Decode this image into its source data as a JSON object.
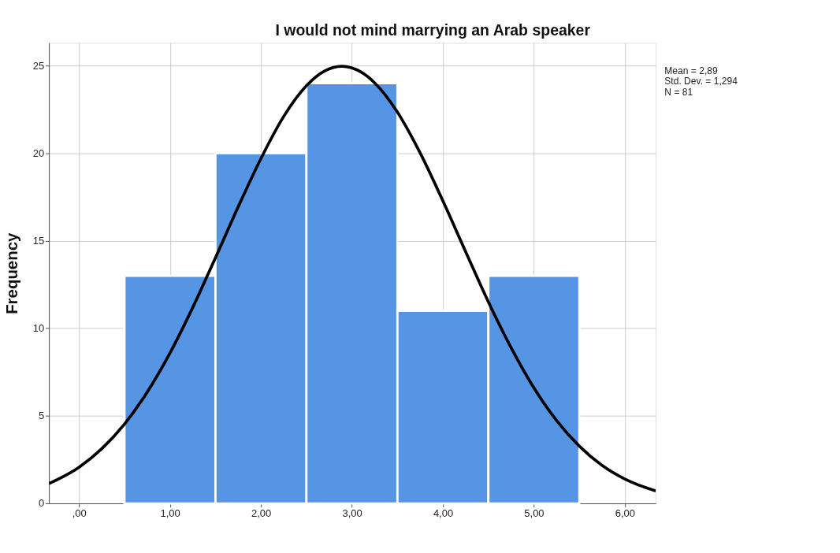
{
  "chart_data": {
    "type": "histogram",
    "title": "I would not mind marrying an Arab speaker",
    "ylabel": "Frequency",
    "bins": [
      0.5,
      1.5,
      2.5,
      3.5,
      4.5,
      5.5
    ],
    "values": [
      13,
      20,
      24,
      11,
      13
    ],
    "color": "#5595e3",
    "series": [
      {
        "type": "line",
        "color": "#000000",
        "x": [
          -0.33,
          0,
          0.25,
          0.5,
          0.75,
          1,
          1.25,
          1.5,
          1.75,
          2,
          2.25,
          2.5,
          2.7,
          2.89,
          3.1,
          3.25,
          3.5,
          3.75,
          4,
          4.25,
          4.5,
          4.75,
          5,
          5.25,
          5.5,
          5.75,
          6,
          6.34
        ],
        "values": [
          1.13,
          2.06,
          3.12,
          4.53,
          6.36,
          8.59,
          11.19,
          14.03,
          16.94,
          19.7,
          22.1,
          23.86,
          24.7,
          24.97,
          24.64,
          24.02,
          22.35,
          20.02,
          17.28,
          14.38,
          11.51,
          8.89,
          6.6,
          4.73,
          3.27,
          2.17,
          1.39,
          0.71
        ]
      }
    ],
    "xlim": [
      -0.33,
      6.34
    ],
    "ylim": [
      0,
      26.3
    ],
    "xticks": [
      {
        "value": 0,
        "label": ",00"
      },
      {
        "value": 1,
        "label": "1,00"
      },
      {
        "value": 2,
        "label": "2,00"
      },
      {
        "value": 3,
        "label": "3,00"
      },
      {
        "value": 4,
        "label": "4,00"
      },
      {
        "value": 5,
        "label": "5,00"
      },
      {
        "value": 6,
        "label": "6,00"
      }
    ],
    "yticks": [
      0,
      5,
      10,
      15,
      20,
      25
    ],
    "grid": true,
    "annotations": [
      "Mean = 2,89",
      "Std. Dev. = 1,294",
      "N = 81"
    ]
  }
}
